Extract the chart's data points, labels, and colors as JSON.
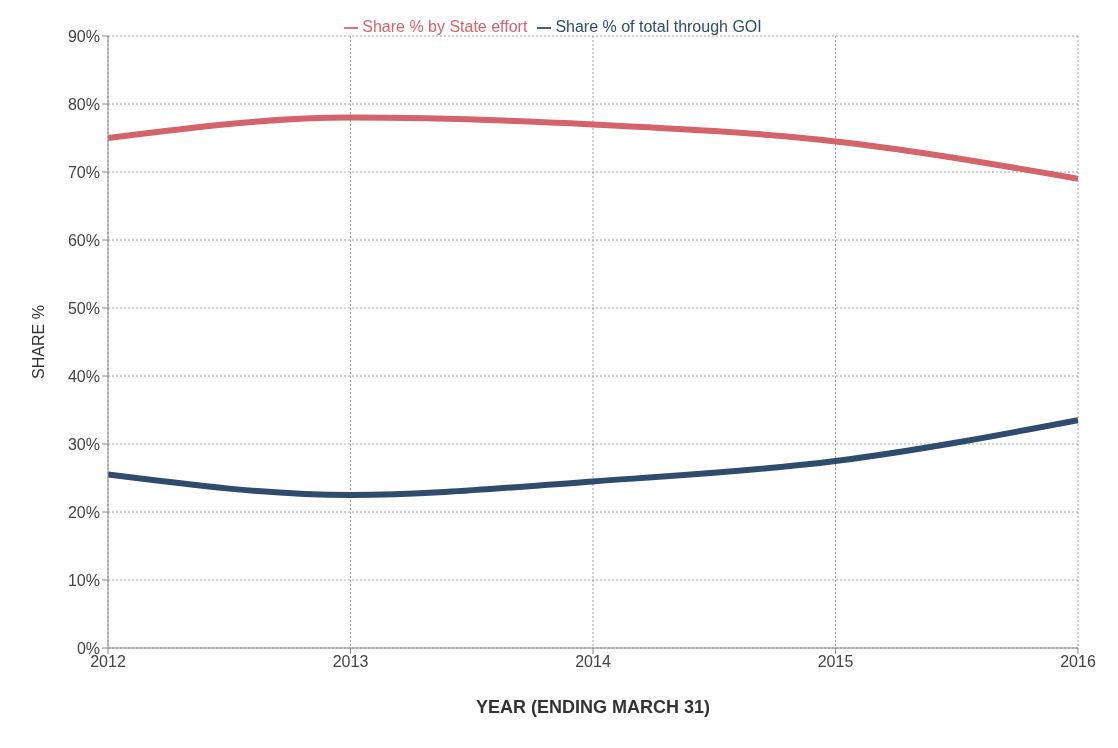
{
  "chart_data": {
    "type": "line",
    "xlabel": "YEAR (ENDING MARCH 31)",
    "ylabel": "SHARE %",
    "x": [
      2012,
      2013,
      2014,
      2015,
      2016
    ],
    "series": [
      {
        "name": "Share % of total through GOI",
        "color": "#2f4b6e",
        "values": [
          25.5,
          22.5,
          24.5,
          27.5,
          33.5
        ]
      },
      {
        "name": "Share % by State effort",
        "color": "#d4636c",
        "values": [
          75,
          78,
          77,
          74.5,
          69
        ]
      }
    ],
    "xlim": [
      2012,
      2016
    ],
    "xticks": [
      2012,
      2013,
      2014,
      2015,
      2016
    ],
    "ylim": [
      0,
      90
    ],
    "yticks": [
      {
        "value": 0,
        "label": "0%"
      },
      {
        "value": 10,
        "label": "10%"
      },
      {
        "value": 20,
        "label": "20%"
      },
      {
        "value": 30,
        "label": "30%"
      },
      {
        "value": 40,
        "label": "40%"
      },
      {
        "value": 50,
        "label": "50%"
      },
      {
        "value": 60,
        "label": "60%"
      },
      {
        "value": 70,
        "label": "70%"
      },
      {
        "value": 80,
        "label": "80%"
      },
      {
        "value": 90,
        "label": "90%"
      }
    ],
    "grid": true,
    "legend": "top",
    "marker": "none",
    "line_style": "solid"
  }
}
